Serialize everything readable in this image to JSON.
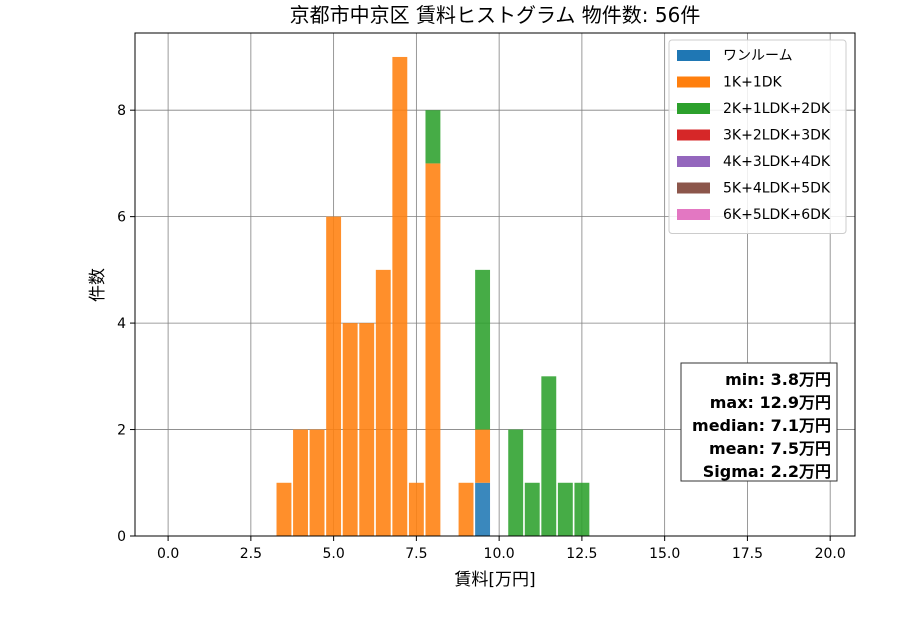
{
  "chart_data": {
    "type": "bar",
    "stacked": true,
    "title": "京都市中京区 賃料ヒストグラム  物件数: 56件",
    "xlabel": "賃料[万円]",
    "ylabel": "件数",
    "xlim": [
      -1.0,
      20.75
    ],
    "ylim": [
      0,
      9.45
    ],
    "xticks": [
      "0.0",
      "2.5",
      "5.0",
      "7.5",
      "10.0",
      "12.5",
      "15.0",
      "17.5",
      "20.0"
    ],
    "xtick_values": [
      0,
      2.5,
      5,
      7.5,
      10,
      12.5,
      15,
      17.5,
      20
    ],
    "yticks": [
      "0",
      "2",
      "4",
      "6",
      "8"
    ],
    "ytick_values": [
      0,
      2,
      4,
      6,
      8
    ],
    "grid": true,
    "legend_position": "top-right",
    "bin_width": 0.5,
    "bin_centers": [
      3.5,
      4.0,
      4.5,
      5.0,
      5.5,
      6.0,
      6.5,
      7.0,
      7.5,
      8.0,
      9.0,
      9.5,
      10.5,
      11.0,
      11.5,
      12.0,
      12.5
    ],
    "series": [
      {
        "name": "ワンルーム",
        "color": "#1f77b4",
        "values": [
          0,
          0,
          0,
          0,
          0,
          0,
          0,
          0,
          0,
          0,
          0,
          1,
          0,
          0,
          0,
          0,
          0
        ]
      },
      {
        "name": "1K+1DK",
        "color": "#ff7f0e",
        "values": [
          1,
          2,
          2,
          6,
          4,
          4,
          5,
          9,
          1,
          7,
          1,
          1,
          0,
          0,
          0,
          0,
          0
        ]
      },
      {
        "name": "2K+1LDK+2DK",
        "color": "#2ca02c",
        "values": [
          0,
          0,
          0,
          0,
          0,
          0,
          0,
          0,
          0,
          1,
          0,
          3,
          2,
          1,
          3,
          1,
          1
        ]
      },
      {
        "name": "3K+2LDK+3DK",
        "color": "#d62728",
        "values": [
          0,
          0,
          0,
          0,
          0,
          0,
          0,
          0,
          0,
          0,
          0,
          0,
          0,
          0,
          0,
          0,
          0
        ]
      },
      {
        "name": "4K+3LDK+4DK",
        "color": "#9467bd",
        "values": [
          0,
          0,
          0,
          0,
          0,
          0,
          0,
          0,
          0,
          0,
          0,
          0,
          0,
          0,
          0,
          0,
          0
        ]
      },
      {
        "name": "5K+4LDK+5DK",
        "color": "#8c564b",
        "values": [
          0,
          0,
          0,
          0,
          0,
          0,
          0,
          0,
          0,
          0,
          0,
          0,
          0,
          0,
          0,
          0,
          0
        ]
      },
      {
        "name": "6K+5LDK+6DK",
        "color": "#e377c2",
        "values": [
          0,
          0,
          0,
          0,
          0,
          0,
          0,
          0,
          0,
          0,
          0,
          0,
          0,
          0,
          0,
          0,
          0
        ]
      }
    ],
    "annotations": [
      "min: 3.8万円",
      "max: 12.9万円",
      "median: 7.1万円",
      "mean: 7.5万円",
      "Sigma: 2.2万円"
    ]
  }
}
